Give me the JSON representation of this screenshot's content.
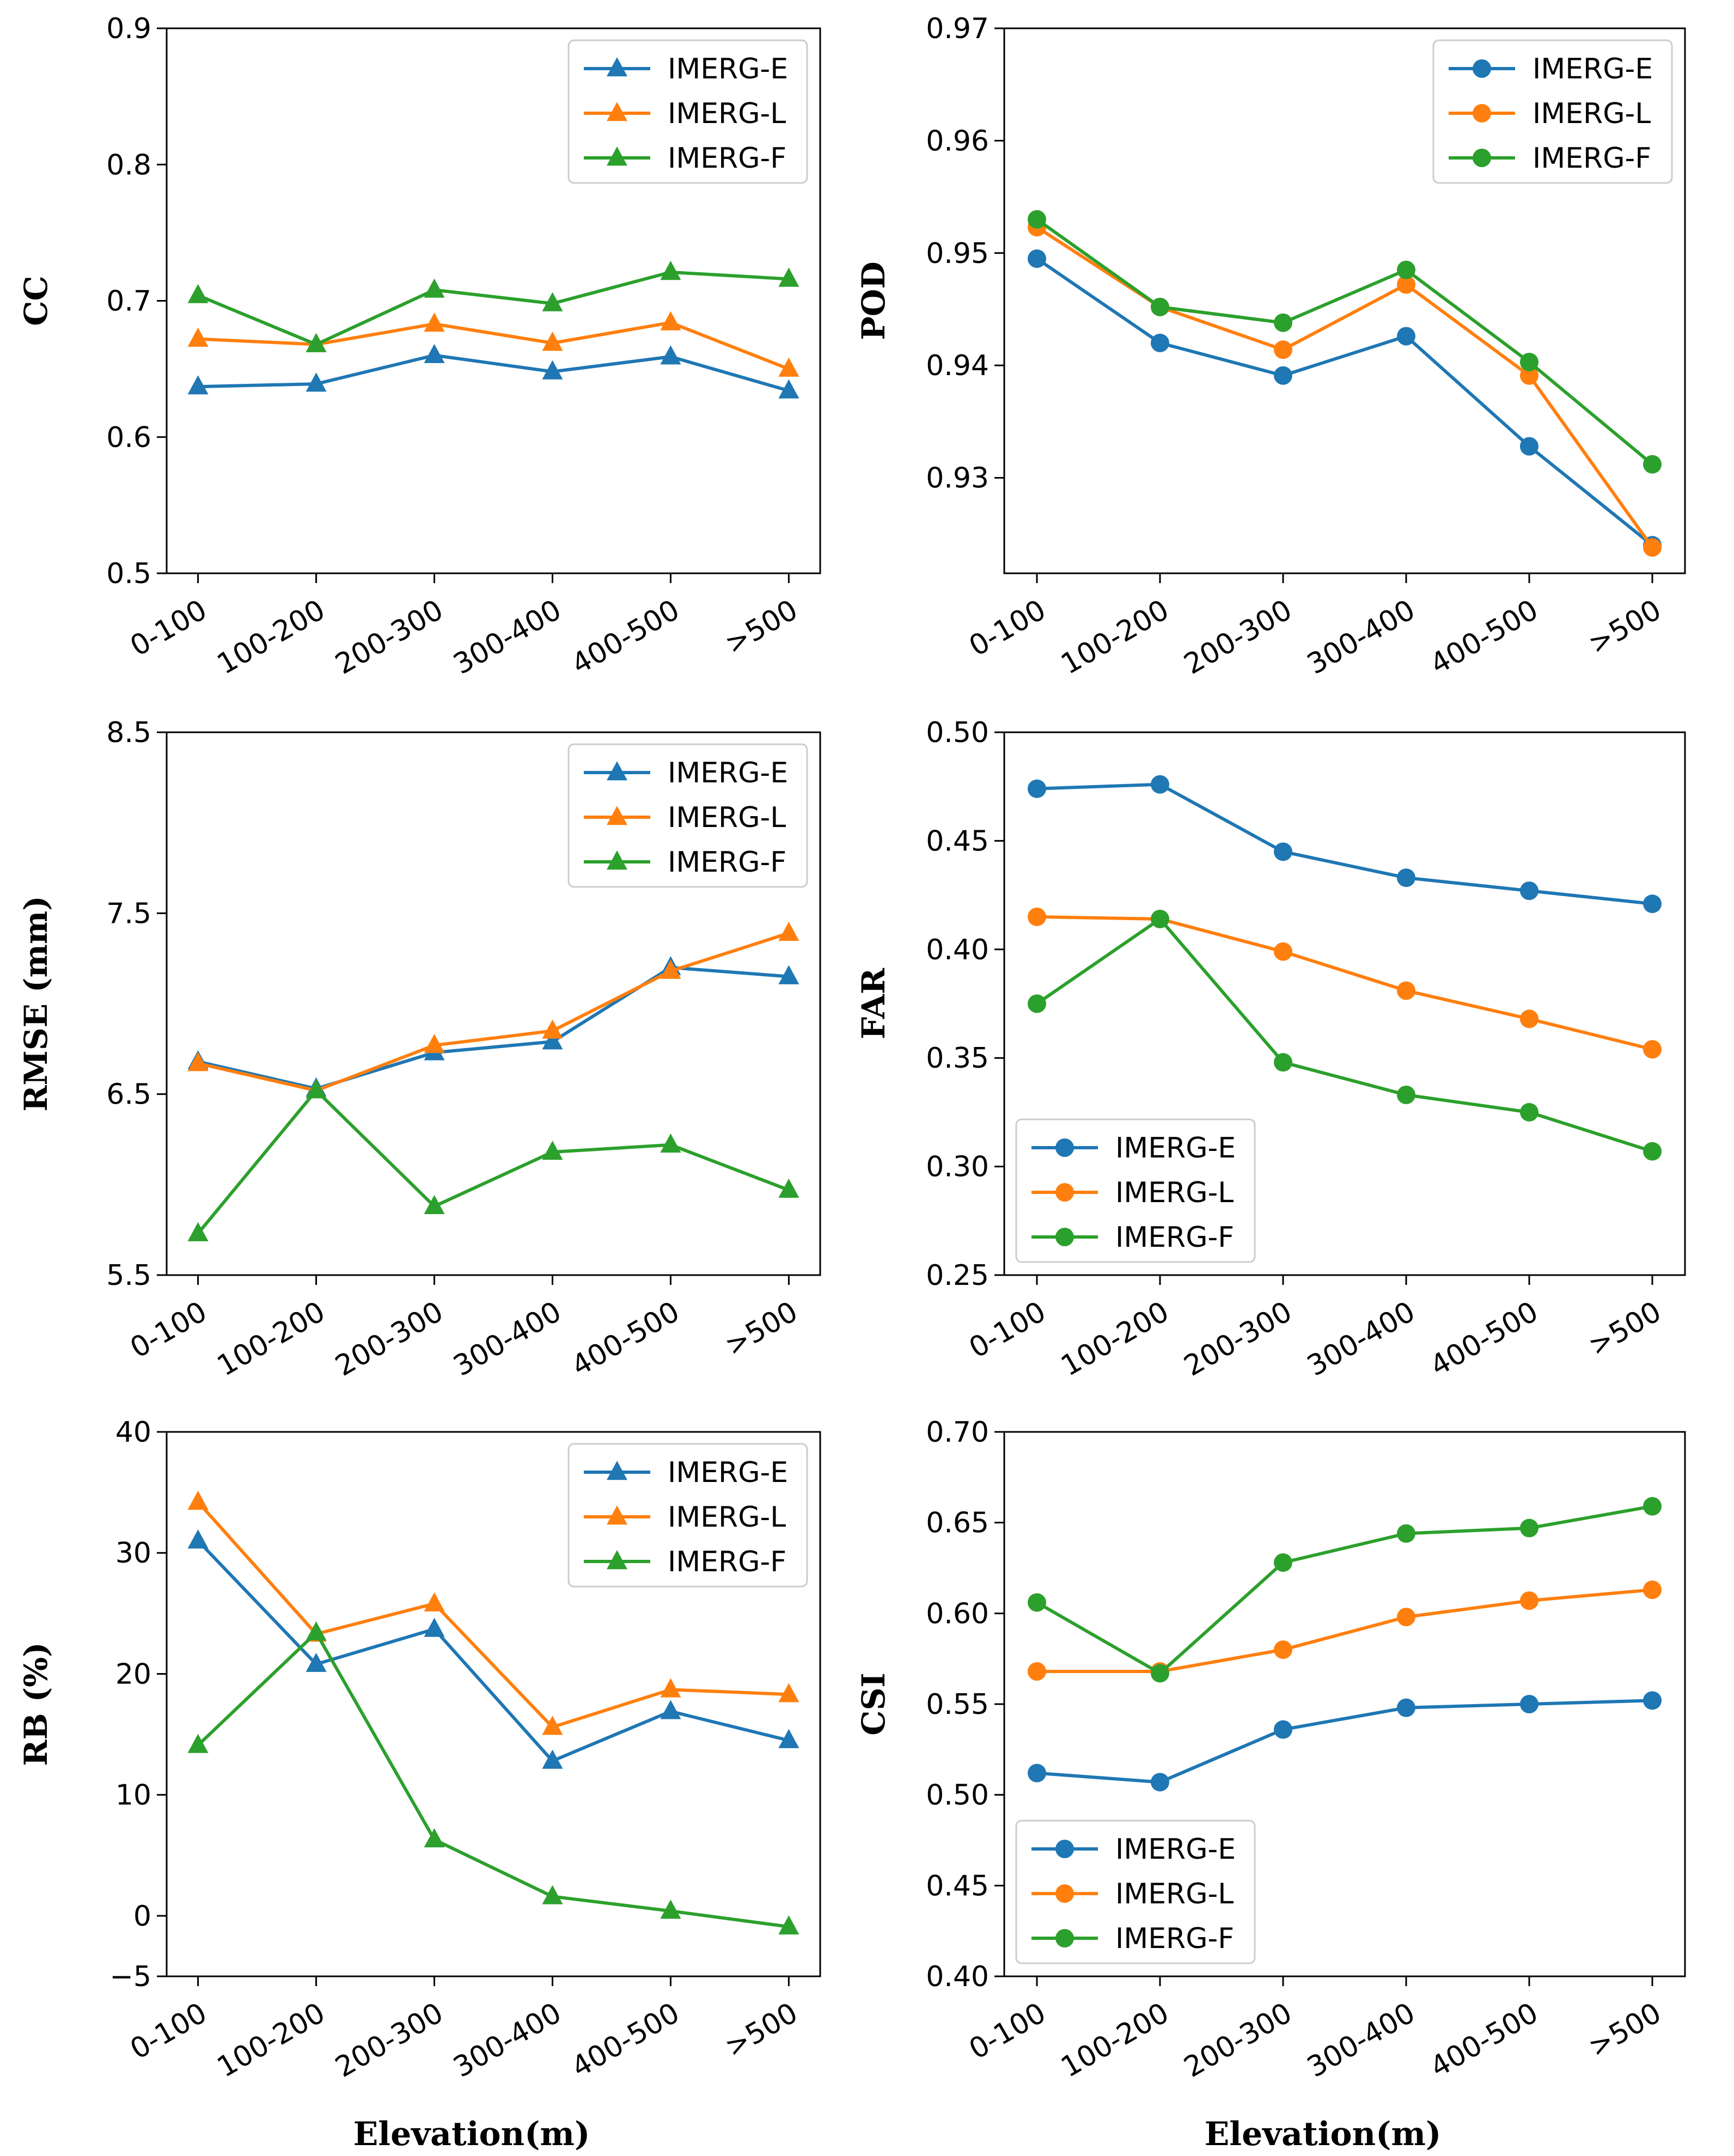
{
  "figure": {
    "series_colors": {
      "IMERG-E": "#1f77b4",
      "IMERG-L": "#ff7f0e",
      "IMERG-F": "#2ca02c"
    }
  },
  "chart_data": [
    {
      "id": "cc",
      "type": "line",
      "marker": "triangle",
      "ylabel": "CC",
      "xlabel": "",
      "categories": [
        "0-100",
        "100-200",
        "200-300",
        "300-400",
        "400-500",
        ">500"
      ],
      "ylim": [
        0.5,
        0.9
      ],
      "yticks": [
        0.5,
        0.6,
        0.7,
        0.8,
        0.9
      ],
      "ytick_labels": [
        "0.5",
        "0.6",
        "0.7",
        "0.8",
        "0.9"
      ],
      "legend_position": "top-right",
      "series": [
        {
          "name": "IMERG-E",
          "color": "#1f77b4",
          "values": [
            0.637,
            0.639,
            0.66,
            0.648,
            0.659,
            0.634
          ]
        },
        {
          "name": "IMERG-L",
          "color": "#ff7f0e",
          "values": [
            0.672,
            0.668,
            0.683,
            0.669,
            0.684,
            0.65
          ]
        },
        {
          "name": "IMERG-F",
          "color": "#2ca02c",
          "values": [
            0.704,
            0.668,
            0.708,
            0.698,
            0.721,
            0.716
          ]
        }
      ]
    },
    {
      "id": "pod",
      "type": "line",
      "marker": "circle",
      "ylabel": "POD",
      "xlabel": "",
      "categories": [
        "0-100",
        "100-200",
        "200-300",
        "300-400",
        "400-500",
        ">500"
      ],
      "ylim": [
        0.9215,
        0.97
      ],
      "yticks": [
        0.93,
        0.94,
        0.95,
        0.96,
        0.97
      ],
      "ytick_labels": [
        "0.93",
        "0.94",
        "0.95",
        "0.96",
        "0.97"
      ],
      "legend_position": "top-right",
      "series": [
        {
          "name": "IMERG-E",
          "color": "#1f77b4",
          "values": [
            0.9495,
            0.942,
            0.9391,
            0.9426,
            0.9328,
            0.924
          ]
        },
        {
          "name": "IMERG-L",
          "color": "#ff7f0e",
          "values": [
            0.9523,
            0.9452,
            0.9414,
            0.9472,
            0.9391,
            0.9238
          ]
        },
        {
          "name": "IMERG-F",
          "color": "#2ca02c",
          "values": [
            0.953,
            0.9452,
            0.9438,
            0.9485,
            0.9403,
            0.9312
          ]
        }
      ]
    },
    {
      "id": "rmse",
      "type": "line",
      "marker": "triangle",
      "ylabel": "RMSE (mm)",
      "xlabel": "",
      "categories": [
        "0-100",
        "100-200",
        "200-300",
        "300-400",
        "400-500",
        ">500"
      ],
      "ylim": [
        5.5,
        8.5
      ],
      "yticks": [
        5.5,
        6.5,
        7.5,
        8.5
      ],
      "ytick_labels": [
        "5.5",
        "6.5",
        "7.5",
        "8.5"
      ],
      "legend_position": "top-right",
      "series": [
        {
          "name": "IMERG-E",
          "color": "#1f77b4",
          "values": [
            6.68,
            6.53,
            6.73,
            6.79,
            7.2,
            7.15
          ]
        },
        {
          "name": "IMERG-L",
          "color": "#ff7f0e",
          "values": [
            6.67,
            6.52,
            6.77,
            6.85,
            7.18,
            7.39
          ]
        },
        {
          "name": "IMERG-F",
          "color": "#2ca02c",
          "values": [
            5.73,
            6.52,
            5.88,
            6.18,
            6.22,
            5.97
          ]
        }
      ]
    },
    {
      "id": "far",
      "type": "line",
      "marker": "circle",
      "ylabel": "FAR",
      "xlabel": "",
      "categories": [
        "0-100",
        "100-200",
        "200-300",
        "300-400",
        "400-500",
        ">500"
      ],
      "ylim": [
        0.25,
        0.5
      ],
      "yticks": [
        0.25,
        0.3,
        0.35,
        0.4,
        0.45,
        0.5
      ],
      "ytick_labels": [
        "0.25",
        "0.30",
        "0.35",
        "0.40",
        "0.45",
        "0.50"
      ],
      "legend_position": "bottom-left",
      "series": [
        {
          "name": "IMERG-E",
          "color": "#1f77b4",
          "values": [
            0.474,
            0.476,
            0.445,
            0.433,
            0.427,
            0.421
          ]
        },
        {
          "name": "IMERG-L",
          "color": "#ff7f0e",
          "values": [
            0.415,
            0.414,
            0.399,
            0.381,
            0.368,
            0.354
          ]
        },
        {
          "name": "IMERG-F",
          "color": "#2ca02c",
          "values": [
            0.375,
            0.414,
            0.348,
            0.333,
            0.325,
            0.307
          ]
        }
      ]
    },
    {
      "id": "rb",
      "type": "line",
      "marker": "triangle",
      "ylabel": "RB (%)",
      "xlabel": "Elevation(m)",
      "categories": [
        "0-100",
        "100-200",
        "200-300",
        "300-400",
        "400-500",
        ">500"
      ],
      "ylim": [
        -5,
        40
      ],
      "yticks": [
        -5,
        0,
        10,
        20,
        30,
        40
      ],
      "ytick_labels": [
        "−5",
        "0",
        "10",
        "20",
        "30",
        "40"
      ],
      "legend_position": "top-right",
      "series": [
        {
          "name": "IMERG-E",
          "color": "#1f77b4",
          "values": [
            31.0,
            20.8,
            23.7,
            12.8,
            16.9,
            14.5
          ]
        },
        {
          "name": "IMERG-L",
          "color": "#ff7f0e",
          "values": [
            34.2,
            23.3,
            25.8,
            15.6,
            18.7,
            18.3
          ]
        },
        {
          "name": "IMERG-F",
          "color": "#2ca02c",
          "values": [
            14.1,
            23.4,
            6.3,
            1.6,
            0.4,
            -0.9
          ]
        }
      ]
    },
    {
      "id": "csi",
      "type": "line",
      "marker": "circle",
      "ylabel": "CSI",
      "xlabel": "Elevation(m)",
      "categories": [
        "0-100",
        "100-200",
        "200-300",
        "300-400",
        "400-500",
        ">500"
      ],
      "ylim": [
        0.4,
        0.7
      ],
      "yticks": [
        0.4,
        0.45,
        0.5,
        0.55,
        0.6,
        0.65,
        0.7
      ],
      "ytick_labels": [
        "0.40",
        "0.45",
        "0.50",
        "0.55",
        "0.60",
        "0.65",
        "0.70"
      ],
      "legend_position": "bottom-left",
      "series": [
        {
          "name": "IMERG-E",
          "color": "#1f77b4",
          "values": [
            0.512,
            0.507,
            0.536,
            0.548,
            0.55,
            0.552
          ]
        },
        {
          "name": "IMERG-L",
          "color": "#ff7f0e",
          "values": [
            0.568,
            0.568,
            0.58,
            0.598,
            0.607,
            0.613
          ]
        },
        {
          "name": "IMERG-F",
          "color": "#2ca02c",
          "values": [
            0.606,
            0.567,
            0.628,
            0.644,
            0.647,
            0.659
          ]
        }
      ]
    }
  ]
}
